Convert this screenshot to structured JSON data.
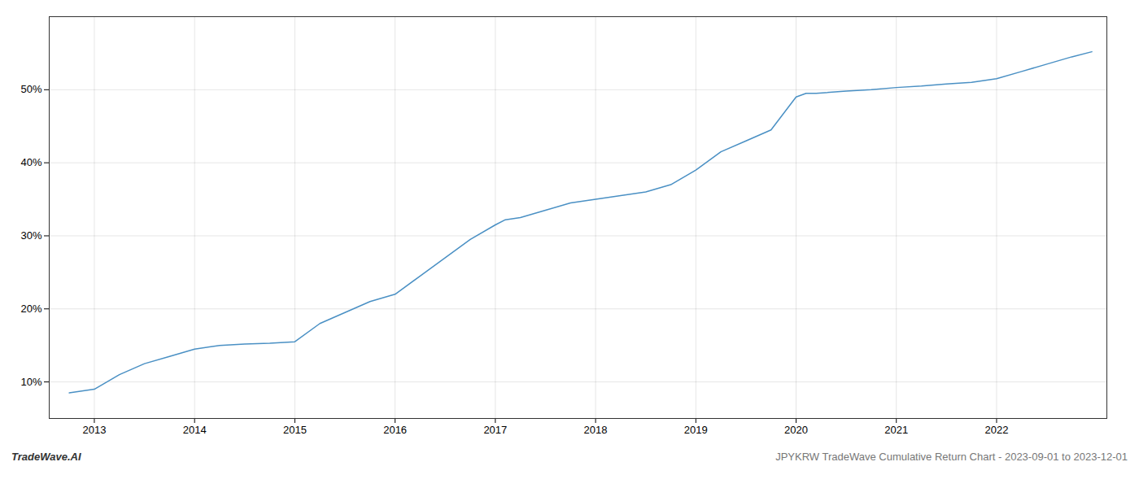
{
  "chart_data": {
    "type": "line",
    "annotations": [
      "TradeWave.AI",
      "JPYKRW TradeWave Cumulative Return Chart - 2023-09-01 to 2023-12-01"
    ],
    "x": [
      2012.75,
      2013.0,
      2013.25,
      2013.5,
      2013.75,
      2014.0,
      2014.25,
      2014.5,
      2014.75,
      2015.0,
      2015.25,
      2015.5,
      2015.75,
      2016.0,
      2016.25,
      2016.5,
      2016.75,
      2017.0,
      2017.1,
      2017.25,
      2017.5,
      2017.75,
      2018.0,
      2018.25,
      2018.5,
      2018.75,
      2019.0,
      2019.25,
      2019.5,
      2019.75,
      2020.0,
      2020.1,
      2020.2,
      2020.5,
      2020.75,
      2021.0,
      2021.25,
      2021.5,
      2021.75,
      2022.0,
      2022.25,
      2022.5,
      2022.75,
      2022.95
    ],
    "values": [
      8.5,
      9.0,
      11.0,
      12.5,
      13.5,
      14.5,
      15.0,
      15.2,
      15.3,
      15.5,
      18.0,
      19.5,
      21.0,
      22.0,
      24.5,
      27.0,
      29.5,
      31.5,
      32.2,
      32.5,
      33.5,
      34.5,
      35.0,
      35.5,
      36.0,
      37.0,
      39.0,
      41.5,
      43.0,
      44.5,
      49.0,
      49.5,
      49.5,
      49.8,
      50.0,
      50.3,
      50.5,
      50.8,
      51.0,
      51.5,
      52.5,
      53.5,
      54.5,
      55.2
    ],
    "color": "#4a90c4",
    "xlim": [
      2012.55,
      2023.1
    ],
    "xticks": [
      2013,
      2014,
      2015,
      2016,
      2017,
      2018,
      2019,
      2020,
      2021,
      2022
    ],
    "ylim": [
      5,
      60
    ],
    "yticks": [
      {
        "value": 10,
        "label": "10%"
      },
      {
        "value": 20,
        "label": "20%"
      },
      {
        "value": 30,
        "label": "30%"
      },
      {
        "value": 40,
        "label": "40%"
      },
      {
        "value": 50,
        "label": "50%"
      }
    ],
    "grid": true
  }
}
